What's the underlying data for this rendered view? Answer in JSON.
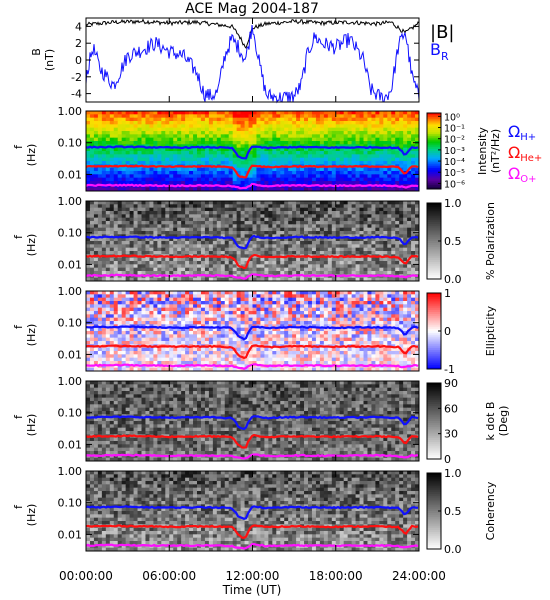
{
  "title": "ACE Mag 2004-187",
  "chart_data": {
    "type": "spectrogram-stack",
    "title": "ACE Mag 2004-187",
    "xlabel": "Time (UT)",
    "x_ticks": [
      "00:00:00",
      "06:00:00",
      "12:00:00",
      "18:00:00",
      "24:00:00"
    ],
    "x_range_hours": [
      0,
      24
    ],
    "b_panel": {
      "type": "line",
      "ylabel_top": "B",
      "ylabel_unit": "(nT)",
      "y_ticks": [
        "4",
        "2",
        "0",
        "-2",
        "-4"
      ],
      "ylim": [
        -5,
        5
      ],
      "series": [
        {
          "label": "|B|",
          "color": "#000000",
          "x": [
            0,
            2,
            4,
            6,
            8,
            9.5,
            10.5,
            11,
            11.5,
            12,
            13,
            15,
            17,
            19,
            21,
            22,
            23,
            24
          ],
          "values": [
            4.2,
            4.5,
            4.6,
            4.4,
            4.5,
            4.2,
            4.0,
            3.0,
            1.5,
            3.8,
            4.3,
            4.6,
            4.4,
            4.5,
            4.3,
            4.5,
            3.2,
            4.4
          ]
        },
        {
          "label": "B",
          "sub": "R",
          "color": "#1010ff",
          "x": [
            0,
            0.5,
            1,
            2,
            3,
            4,
            5,
            6,
            7,
            8,
            8.5,
            9,
            9.5,
            10,
            10.5,
            11,
            11.5,
            12,
            12.5,
            13,
            14,
            15,
            15.5,
            16,
            16.5,
            17,
            18,
            19,
            20,
            20.5,
            21,
            21.5,
            22,
            22.5,
            23,
            23.5,
            24
          ],
          "values": [
            -2,
            1.5,
            -1,
            -3,
            0.5,
            1.2,
            2.0,
            1.0,
            0.5,
            -1.5,
            -4.0,
            -4.3,
            -3.8,
            0.5,
            2.5,
            1.5,
            0,
            4.3,
            -0.5,
            -4.2,
            -4.5,
            -4.3,
            -3,
            1.0,
            2.8,
            2.0,
            1.5,
            2.5,
            0,
            -3.5,
            -4.2,
            -4.6,
            -3.5,
            1.5,
            3.5,
            -2.0,
            -4.5
          ]
        }
      ]
    },
    "freq_axis": {
      "ylabel_top": "f",
      "ylabel_unit": "(Hz)",
      "y_ticks": [
        "1.00",
        "0.10",
        "0.01"
      ],
      "scale": "log",
      "ylim": [
        0.003,
        1.0
      ]
    },
    "gyrofrequency_curves": [
      {
        "label": "Ω",
        "sub": "H+",
        "color": "#1010ff",
        "x": [
          0,
          3,
          6,
          9,
          10.5,
          11,
          11.5,
          12,
          13,
          15,
          18,
          21,
          22.5,
          23,
          23.5,
          24
        ],
        "values": [
          0.072,
          0.074,
          0.07,
          0.072,
          0.068,
          0.035,
          0.03,
          0.078,
          0.068,
          0.073,
          0.07,
          0.072,
          0.068,
          0.04,
          0.072,
          0.07
        ]
      },
      {
        "label": "Ω",
        "sub": "He+",
        "color": "#ff1010",
        "x": [
          0,
          3,
          6,
          9,
          10.5,
          11,
          11.5,
          12,
          13,
          15,
          18,
          21,
          22.5,
          23,
          23.5,
          24
        ],
        "values": [
          0.018,
          0.0185,
          0.0175,
          0.018,
          0.017,
          0.009,
          0.0075,
          0.0195,
          0.017,
          0.018,
          0.0175,
          0.018,
          0.017,
          0.01,
          0.018,
          0.0175
        ]
      },
      {
        "label": "Ω",
        "sub": "O+",
        "color": "#ff10ff",
        "x": [
          0,
          3,
          6,
          9,
          10.5,
          11,
          11.5,
          12,
          13,
          15,
          18,
          21,
          22.5,
          23,
          23.5,
          24
        ],
        "values": [
          0.0045,
          0.0046,
          0.0044,
          0.0045,
          0.0043,
          0.0038,
          0.0036,
          0.0049,
          0.0043,
          0.0045,
          0.0044,
          0.0045,
          0.0043,
          0.0039,
          0.0045,
          0.0044
        ]
      }
    ],
    "panels": [
      {
        "name": "intensity",
        "colormap": "rainbow",
        "bar_label": "Intensity",
        "bar_unit": "(nT²/Hz)",
        "bar_ticks": [
          "10⁰",
          "10⁻¹",
          "10⁻²",
          "10⁻³",
          "10⁻⁴",
          "10⁻⁵",
          "10⁻⁶"
        ],
        "bar_range": [
          -6.5,
          0.3
        ]
      },
      {
        "name": "polarization",
        "colormap": "gray",
        "bar_label": "% Polarization",
        "bar_ticks": [
          "1.0",
          "0.5",
          "0.0"
        ],
        "bar_range": [
          0,
          1
        ]
      },
      {
        "name": "ellipticity",
        "colormap": "bwr",
        "bar_label": "Ellipticity",
        "bar_ticks": [
          "1",
          "0",
          "-1"
        ],
        "bar_range": [
          -1,
          1
        ]
      },
      {
        "name": "kdotb",
        "colormap": "gray",
        "bar_label": "k dot B",
        "bar_unit": "(Deg)",
        "bar_ticks": [
          "90",
          "60",
          "30",
          "0"
        ],
        "bar_range": [
          0,
          90
        ]
      },
      {
        "name": "coherency",
        "colormap": "gray",
        "bar_label": "Coherency",
        "bar_ticks": [
          "1.0",
          "0.5",
          "0.0"
        ],
        "bar_range": [
          0,
          1
        ]
      }
    ]
  }
}
